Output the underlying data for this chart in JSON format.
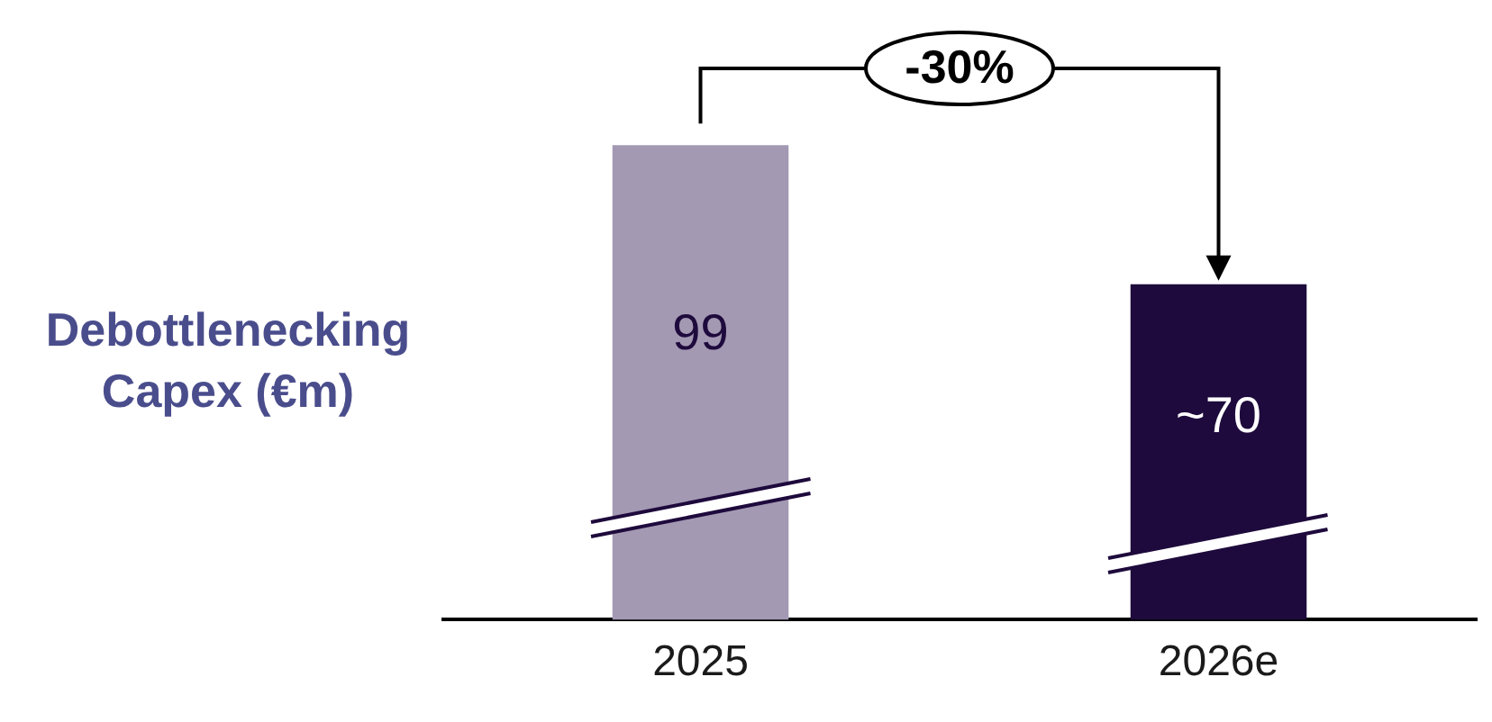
{
  "chart_data": {
    "type": "bar",
    "ylabel": "Debottlenecking Capex (€m)",
    "categories": [
      "2025",
      "2026e"
    ],
    "values": [
      99,
      70
    ],
    "colors": [
      "#a399b3",
      "#1e0a3c"
    ],
    "value_labels": [
      "99",
      "~70"
    ],
    "annotations": [
      "-30%"
    ],
    "grid": false,
    "legend": false,
    "tick_labels": "x"
  }
}
